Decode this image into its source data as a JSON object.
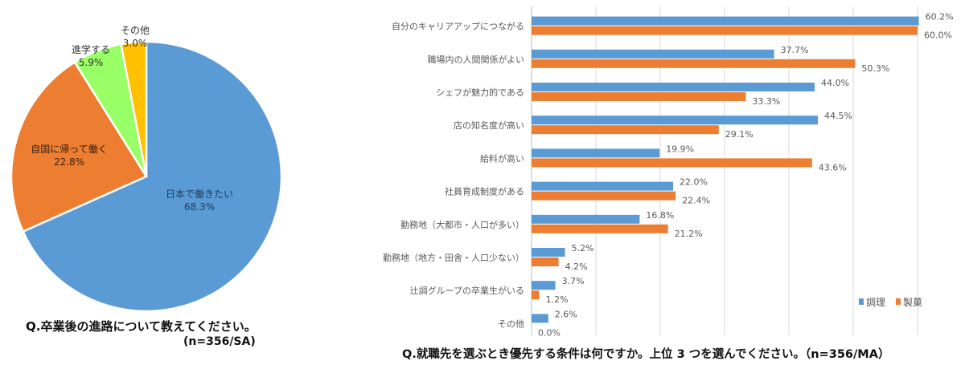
{
  "chart_data": [
    {
      "type": "pie",
      "title": "Q.卒業後の進路について教えてください。",
      "subtitle": "(n=356/SA)",
      "slices": [
        {
          "label": "日本で働きたい",
          "value": 68.3,
          "value_label": "68.3%",
          "color": "#5b9bd5"
        },
        {
          "label": "自国に帰って働く",
          "value": 22.8,
          "value_label": "22.8%",
          "color": "#ed7d31"
        },
        {
          "label": "進学する",
          "value": 5.9,
          "value_label": "5.9%",
          "color": "#99ff66"
        },
        {
          "label": "その他",
          "value": 3.0,
          "value_label": "3.0%",
          "color": "#ffc000"
        }
      ]
    },
    {
      "type": "bar",
      "orientation": "horizontal",
      "title": "Q.就職先を選ぶとき優先する条件は何ですか。上位 3 つを選んでください。（n=356/MA）",
      "xlim": [
        0,
        60
      ],
      "grid": true,
      "legend_position": "bottom-right",
      "categories": [
        "自分のキャリアアップにつながる",
        "職場内の人間関係がよい",
        "シェフが魅力的である",
        "店の知名度が高い",
        "給料が高い",
        "社員育成制度がある",
        "勤務地（大都市・人口が多い）",
        "勤務地（地方・田舎・人口少ない）",
        "辻調グループの卒業生がいる",
        "その他"
      ],
      "series": [
        {
          "name": "調理",
          "color": "#5b9bd5",
          "values": [
            60.2,
            37.7,
            44.0,
            44.5,
            19.9,
            22.0,
            16.8,
            5.2,
            3.7,
            2.6
          ]
        },
        {
          "name": "製菓",
          "color": "#ed7d31",
          "values": [
            60.0,
            50.3,
            33.3,
            29.1,
            43.6,
            22.4,
            21.2,
            4.2,
            1.2,
            0.0
          ]
        }
      ]
    }
  ]
}
